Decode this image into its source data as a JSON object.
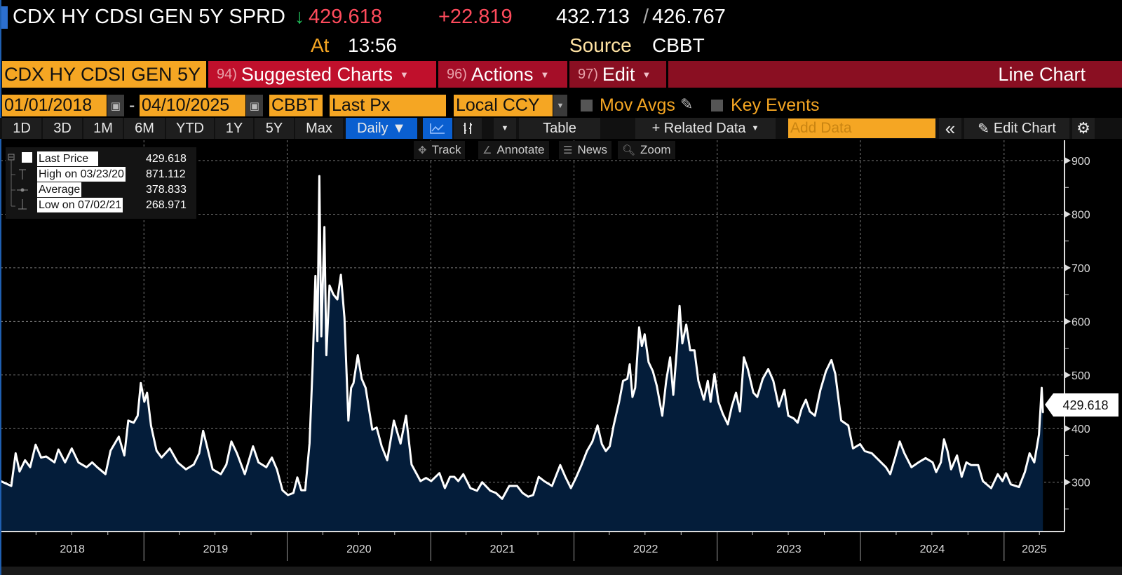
{
  "header": {
    "security": "CDX HY CDSI GEN 5Y SPRD",
    "direction_arrow": "↓",
    "last": "429.618",
    "change": "+22.819",
    "high": "432.713",
    "separator": "/",
    "low": "426.767",
    "at_label": "At",
    "time": "13:56",
    "source_label": "Source",
    "source": "CBBT"
  },
  "menu": {
    "security_field": "CDX HY CDSI GEN 5Y",
    "suggested": {
      "num": "94)",
      "label": "Suggested Charts"
    },
    "actions": {
      "num": "96)",
      "label": "Actions"
    },
    "edit": {
      "num": "97)",
      "label": "Edit"
    },
    "chart_type": "Line Chart"
  },
  "controls": {
    "start_date": "01/01/2018",
    "dash": "-",
    "end_date": "04/10/2025",
    "source": "CBBT",
    "field": "Last Px",
    "currency": "Local CCY",
    "mov_avgs": "Mov Avgs",
    "key_events": "Key Events"
  },
  "toolbar": {
    "ranges": [
      "1D",
      "3D",
      "1M",
      "6M",
      "YTD",
      "1Y",
      "5Y",
      "Max"
    ],
    "frequency": "Daily ▼",
    "table": "Table",
    "related": "+ Related Data",
    "add_data_placeholder": "Add Data",
    "collapse": "«",
    "edit_chart": "Edit Chart"
  },
  "chart_tools": {
    "track": "Track",
    "annotate": "Annotate",
    "news": "News",
    "zoom": "Zoom"
  },
  "legend": {
    "last_label": "Last Price",
    "last_value": "429.618",
    "high_label": "High on 03/23/20",
    "high_value": "871.112",
    "avg_label": "Average",
    "avg_value": "378.833",
    "low_label": "Low on 07/02/21",
    "low_value": "268.971"
  },
  "colors": {
    "accent_orange": "#f5a623",
    "down_red": "#ff4b5c",
    "fill": "#041d3a",
    "line": "#ffffff",
    "menu_red": "#c0102c",
    "menu_dark_red": "#8a0f22",
    "active_blue": "#0a5fd0"
  },
  "chart_data": {
    "type": "area",
    "last_value_label": "429.618",
    "xlim": [
      "2018-01-01",
      "2025-06-04"
    ],
    "ylim": [
      208,
      938
    ],
    "y_ticks": [
      300,
      400,
      500,
      600,
      700,
      800,
      900
    ],
    "x_tick_labels": [
      "2018",
      "2019",
      "2020",
      "2021",
      "2022",
      "2023",
      "2024",
      "2025"
    ],
    "grid": true,
    "points": [
      [
        "2018-01-01",
        302
      ],
      [
        "2018-01-28",
        293
      ],
      [
        "2018-02-08",
        354
      ],
      [
        "2018-02-18",
        320
      ],
      [
        "2018-03-04",
        341
      ],
      [
        "2018-03-17",
        328
      ],
      [
        "2018-03-31",
        370
      ],
      [
        "2018-04-14",
        346
      ],
      [
        "2018-04-27",
        348
      ],
      [
        "2018-05-18",
        337
      ],
      [
        "2018-05-28",
        361
      ],
      [
        "2018-06-14",
        337
      ],
      [
        "2018-07-01",
        363
      ],
      [
        "2018-07-18",
        337
      ],
      [
        "2018-08-08",
        328
      ],
      [
        "2018-08-22",
        337
      ],
      [
        "2018-09-04",
        328
      ],
      [
        "2018-09-25",
        315
      ],
      [
        "2018-10-08",
        359
      ],
      [
        "2018-10-29",
        385
      ],
      [
        "2018-11-12",
        350
      ],
      [
        "2018-11-22",
        415
      ],
      [
        "2018-12-06",
        411
      ],
      [
        "2018-12-16",
        424
      ],
      [
        "2018-12-24",
        485
      ],
      [
        "2019-01-02",
        450
      ],
      [
        "2019-01-09",
        467
      ],
      [
        "2019-01-19",
        406
      ],
      [
        "2019-02-02",
        359
      ],
      [
        "2019-02-15",
        346
      ],
      [
        "2019-03-08",
        363
      ],
      [
        "2019-03-28",
        337
      ],
      [
        "2019-04-18",
        324
      ],
      [
        "2019-05-08",
        333
      ],
      [
        "2019-05-22",
        354
      ],
      [
        "2019-06-01",
        396
      ],
      [
        "2019-06-12",
        363
      ],
      [
        "2019-06-25",
        324
      ],
      [
        "2019-07-16",
        315
      ],
      [
        "2019-07-30",
        333
      ],
      [
        "2019-08-12",
        376
      ],
      [
        "2019-08-26",
        354
      ],
      [
        "2019-09-15",
        315
      ],
      [
        "2019-10-06",
        367
      ],
      [
        "2019-10-20",
        337
      ],
      [
        "2019-11-09",
        328
      ],
      [
        "2019-11-23",
        346
      ],
      [
        "2019-12-06",
        324
      ],
      [
        "2019-12-20",
        285
      ],
      [
        "2020-01-03",
        276
      ],
      [
        "2020-01-17",
        280
      ],
      [
        "2020-01-27",
        309
      ],
      [
        "2020-02-06",
        285
      ],
      [
        "2020-02-16",
        285
      ],
      [
        "2020-02-27",
        372
      ],
      [
        "2020-03-06",
        520
      ],
      [
        "2020-03-13",
        685
      ],
      [
        "2020-03-18",
        563
      ],
      [
        "2020-03-23",
        871.112
      ],
      [
        "2020-03-28",
        572
      ],
      [
        "2020-04-05",
        776
      ],
      [
        "2020-04-10",
        537
      ],
      [
        "2020-04-18",
        667
      ],
      [
        "2020-04-28",
        650
      ],
      [
        "2020-05-08",
        641
      ],
      [
        "2020-05-17",
        687
      ],
      [
        "2020-05-26",
        607
      ],
      [
        "2020-06-05",
        415
      ],
      [
        "2020-06-12",
        476
      ],
      [
        "2020-06-18",
        485
      ],
      [
        "2020-06-29",
        537
      ],
      [
        "2020-07-09",
        493
      ],
      [
        "2020-07-19",
        476
      ],
      [
        "2020-08-05",
        398
      ],
      [
        "2020-08-16",
        402
      ],
      [
        "2020-08-29",
        367
      ],
      [
        "2020-09-12",
        341
      ],
      [
        "2020-09-29",
        415
      ],
      [
        "2020-10-16",
        372
      ],
      [
        "2020-10-30",
        424
      ],
      [
        "2020-11-13",
        333
      ],
      [
        "2020-12-06",
        302
      ],
      [
        "2020-12-20",
        308
      ],
      [
        "2021-01-02",
        302
      ],
      [
        "2021-01-23",
        317
      ],
      [
        "2021-02-06",
        289
      ],
      [
        "2021-02-19",
        310
      ],
      [
        "2021-03-02",
        310
      ],
      [
        "2021-03-12",
        302
      ],
      [
        "2021-03-25",
        315
      ],
      [
        "2021-04-12",
        289
      ],
      [
        "2021-04-29",
        284
      ],
      [
        "2021-05-12",
        300
      ],
      [
        "2021-06-02",
        284
      ],
      [
        "2021-06-16",
        280
      ],
      [
        "2021-07-02",
        268.971
      ],
      [
        "2021-07-20",
        293
      ],
      [
        "2021-08-09",
        293
      ],
      [
        "2021-08-23",
        280
      ],
      [
        "2021-09-06",
        273
      ],
      [
        "2021-09-19",
        276
      ],
      [
        "2021-10-03",
        310
      ],
      [
        "2021-10-17",
        302
      ],
      [
        "2021-11-06",
        293
      ],
      [
        "2021-11-27",
        332
      ],
      [
        "2021-12-10",
        310
      ],
      [
        "2021-12-24",
        289
      ],
      [
        "2022-01-07",
        310
      ],
      [
        "2022-01-20",
        332
      ],
      [
        "2022-02-03",
        358
      ],
      [
        "2022-02-17",
        376
      ],
      [
        "2022-03-02",
        406
      ],
      [
        "2022-03-13",
        371
      ],
      [
        "2022-03-23",
        358
      ],
      [
        "2022-04-02",
        367
      ],
      [
        "2022-04-12",
        406
      ],
      [
        "2022-04-26",
        450
      ],
      [
        "2022-05-06",
        489
      ],
      [
        "2022-05-17",
        493
      ],
      [
        "2022-05-23",
        520
      ],
      [
        "2022-05-30",
        459
      ],
      [
        "2022-06-06",
        476
      ],
      [
        "2022-06-16",
        589
      ],
      [
        "2022-06-23",
        554
      ],
      [
        "2022-06-30",
        576
      ],
      [
        "2022-07-10",
        524
      ],
      [
        "2022-07-21",
        507
      ],
      [
        "2022-07-31",
        480
      ],
      [
        "2022-08-14",
        424
      ],
      [
        "2022-08-24",
        489
      ],
      [
        "2022-09-03",
        533
      ],
      [
        "2022-09-11",
        463
      ],
      [
        "2022-09-20",
        546
      ],
      [
        "2022-09-27",
        629
      ],
      [
        "2022-10-04",
        559
      ],
      [
        "2022-10-14",
        594
      ],
      [
        "2022-10-24",
        546
      ],
      [
        "2022-11-04",
        546
      ],
      [
        "2022-11-14",
        489
      ],
      [
        "2022-11-28",
        454
      ],
      [
        "2022-12-08",
        489
      ],
      [
        "2022-12-15",
        450
      ],
      [
        "2022-12-25",
        502
      ],
      [
        "2023-01-04",
        450
      ],
      [
        "2023-01-15",
        428
      ],
      [
        "2023-01-28",
        408
      ],
      [
        "2023-02-07",
        441
      ],
      [
        "2023-02-18",
        467
      ],
      [
        "2023-02-28",
        432
      ],
      [
        "2023-03-10",
        533
      ],
      [
        "2023-03-20",
        511
      ],
      [
        "2023-04-03",
        467
      ],
      [
        "2023-04-13",
        459
      ],
      [
        "2023-04-27",
        493
      ],
      [
        "2023-05-11",
        511
      ],
      [
        "2023-05-24",
        489
      ],
      [
        "2023-06-07",
        441
      ],
      [
        "2023-06-21",
        472
      ],
      [
        "2023-07-01",
        424
      ],
      [
        "2023-07-15",
        419
      ],
      [
        "2023-07-25",
        411
      ],
      [
        "2023-08-04",
        437
      ],
      [
        "2023-08-15",
        454
      ],
      [
        "2023-08-25",
        432
      ],
      [
        "2023-09-07",
        424
      ],
      [
        "2023-09-21",
        472
      ],
      [
        "2023-10-05",
        507
      ],
      [
        "2023-10-19",
        528
      ],
      [
        "2023-10-29",
        502
      ],
      [
        "2023-11-13",
        415
      ],
      [
        "2023-12-01",
        406
      ],
      [
        "2023-12-13",
        363
      ],
      [
        "2023-12-31",
        371
      ],
      [
        "2024-01-12",
        358
      ],
      [
        "2024-01-30",
        354
      ],
      [
        "2024-02-17",
        341
      ],
      [
        "2024-03-06",
        328
      ],
      [
        "2024-03-17",
        315
      ],
      [
        "2024-03-29",
        345
      ],
      [
        "2024-04-10",
        376
      ],
      [
        "2024-04-22",
        354
      ],
      [
        "2024-05-10",
        328
      ],
      [
        "2024-05-28",
        337
      ],
      [
        "2024-06-15",
        345
      ],
      [
        "2024-07-03",
        337
      ],
      [
        "2024-07-12",
        319
      ],
      [
        "2024-07-24",
        337
      ],
      [
        "2024-08-01",
        380
      ],
      [
        "2024-08-10",
        358
      ],
      [
        "2024-08-19",
        324
      ],
      [
        "2024-09-03",
        350
      ],
      [
        "2024-09-15",
        310
      ],
      [
        "2024-09-27",
        337
      ],
      [
        "2024-10-09",
        332
      ],
      [
        "2024-10-27",
        332
      ],
      [
        "2024-11-08",
        302
      ],
      [
        "2024-11-29",
        289
      ],
      [
        "2024-12-16",
        315
      ],
      [
        "2024-12-28",
        302
      ],
      [
        "2025-01-06",
        317
      ],
      [
        "2025-01-18",
        296
      ],
      [
        "2025-02-08",
        291
      ],
      [
        "2025-02-23",
        319
      ],
      [
        "2025-03-07",
        354
      ],
      [
        "2025-03-19",
        337
      ],
      [
        "2025-03-31",
        389
      ],
      [
        "2025-04-07",
        476
      ],
      [
        "2025-04-10",
        429.618
      ]
    ]
  }
}
